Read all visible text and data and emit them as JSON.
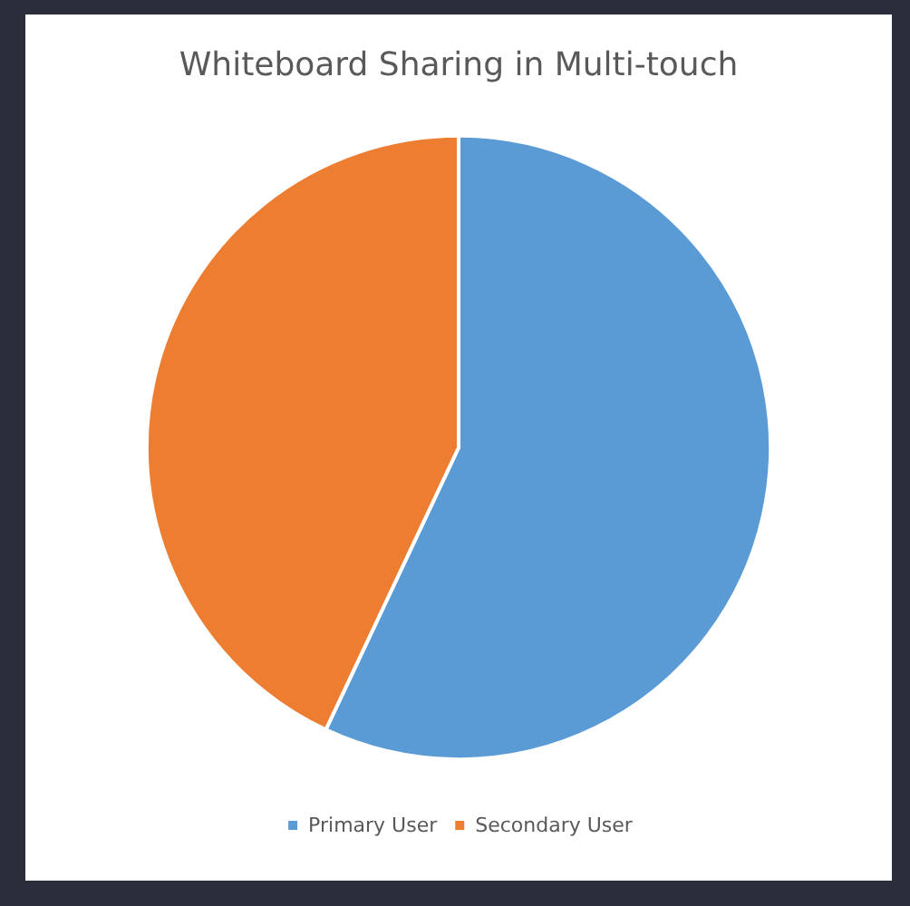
{
  "chart_data": {
    "type": "pie",
    "title": "Whiteboard Sharing in Multi-touch",
    "categories": [
      "Primary User",
      "Secondary User"
    ],
    "values": [
      57,
      43
    ],
    "colors": [
      "#5b9bd5",
      "#ed7d31"
    ],
    "legend": "bottom"
  }
}
